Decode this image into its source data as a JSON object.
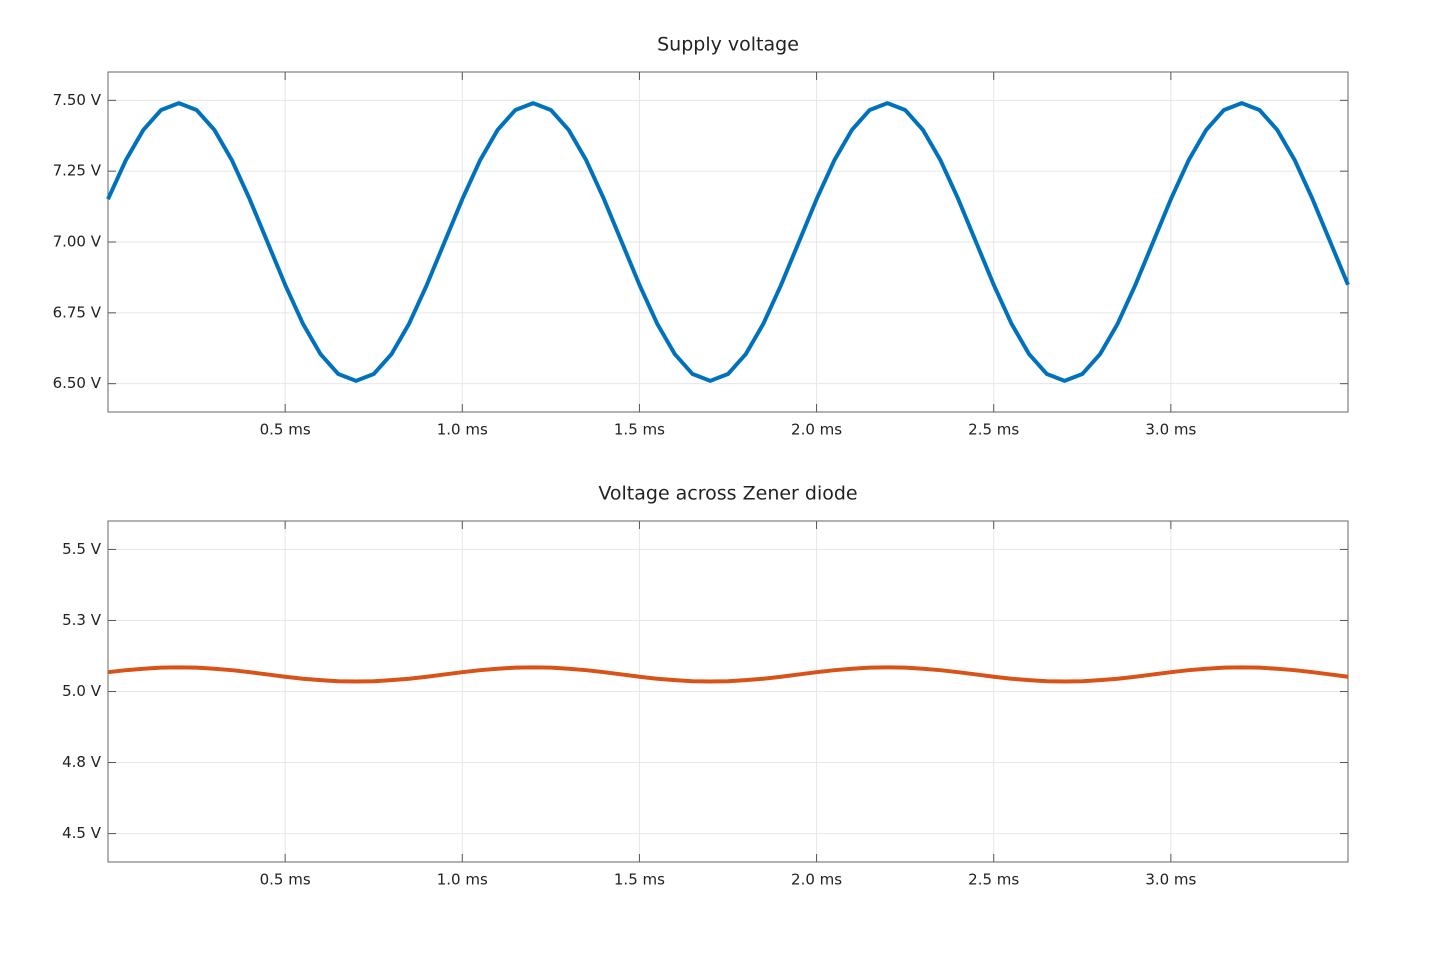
{
  "chart_data": [
    {
      "type": "line",
      "title": "Supply voltage",
      "x": [
        0,
        0.05,
        0.1,
        0.15,
        0.2,
        0.25,
        0.3,
        0.35,
        0.4,
        0.45,
        0.5,
        0.55,
        0.6,
        0.65,
        0.7,
        0.75,
        0.8,
        0.85,
        0.9,
        0.95,
        1.0,
        1.05,
        1.1,
        1.15,
        1.2,
        1.25,
        1.3,
        1.35,
        1.4,
        1.45,
        1.5,
        1.55,
        1.6,
        1.65,
        1.7,
        1.75,
        1.8,
        1.85,
        1.9,
        1.95,
        2.0,
        2.05,
        2.1,
        2.15,
        2.2,
        2.25,
        2.3,
        2.35,
        2.4,
        2.45,
        2.5,
        2.55,
        2.6,
        2.65,
        2.7,
        2.75,
        2.8,
        2.85,
        2.9,
        2.95,
        3.0,
        3.05,
        3.1,
        3.15,
        3.2,
        3.25,
        3.3,
        3.35,
        3.4,
        3.45,
        3.5
      ],
      "series": [
        {
          "color": "#0072bd",
          "values": [
            7.151,
            7.288,
            7.396,
            7.466,
            7.49,
            7.466,
            7.396,
            7.288,
            7.151,
            7.0,
            6.849,
            6.712,
            6.604,
            6.534,
            6.51,
            6.534,
            6.604,
            6.712,
            6.849,
            7.0,
            7.151,
            7.288,
            7.396,
            7.466,
            7.49,
            7.466,
            7.396,
            7.288,
            7.151,
            7.0,
            6.849,
            6.712,
            6.604,
            6.534,
            6.51,
            6.534,
            6.604,
            6.712,
            6.849,
            7.0,
            7.151,
            7.288,
            7.396,
            7.466,
            7.49,
            7.466,
            7.396,
            7.288,
            7.151,
            7.0,
            6.849,
            6.712,
            6.604,
            6.534,
            6.51,
            6.534,
            6.604,
            6.712,
            6.849,
            7.0,
            7.151,
            7.288,
            7.396,
            7.466,
            7.49,
            7.466,
            7.396,
            7.288,
            7.151,
            7.0,
            6.849
          ]
        }
      ],
      "xlim": [
        0,
        3.5
      ],
      "xticks": [
        {
          "value": 0.5,
          "label": "0.5 ms"
        },
        {
          "value": 1,
          "label": "1.0 ms"
        },
        {
          "value": 1.5,
          "label": "1.5 ms"
        },
        {
          "value": 2,
          "label": "2.0 ms"
        },
        {
          "value": 2.5,
          "label": "2.5 ms"
        },
        {
          "value": 3,
          "label": "3.0 ms"
        }
      ],
      "ylim": [
        6.4,
        7.6
      ],
      "yticks": [
        {
          "value": 6.5,
          "label": "6.50 V"
        },
        {
          "value": 6.75,
          "label": "6.75 V"
        },
        {
          "value": 7,
          "label": "7.00 V"
        },
        {
          "value": 7.25,
          "label": "7.25 V"
        },
        {
          "value": 7.5,
          "label": "7.50 V"
        }
      ],
      "grid": true
    },
    {
      "type": "line",
      "title": "Voltage across Zener diode",
      "x": [
        0,
        0.05,
        0.1,
        0.15,
        0.2,
        0.25,
        0.3,
        0.35,
        0.4,
        0.45,
        0.5,
        0.55,
        0.6,
        0.65,
        0.7,
        0.75,
        0.8,
        0.85,
        0.9,
        0.95,
        1.0,
        1.05,
        1.1,
        1.15,
        1.2,
        1.25,
        1.3,
        1.35,
        1.4,
        1.45,
        1.5,
        1.55,
        1.6,
        1.65,
        1.7,
        1.75,
        1.8,
        1.85,
        1.9,
        1.95,
        2.0,
        2.05,
        2.1,
        2.15,
        2.2,
        2.25,
        2.3,
        2.35,
        2.4,
        2.45,
        2.5,
        2.55,
        2.6,
        2.65,
        2.7,
        2.75,
        2.8,
        2.85,
        2.9,
        2.95,
        3.0,
        3.05,
        3.1,
        3.15,
        3.2,
        3.25,
        3.3,
        3.35,
        3.4,
        3.45,
        3.5
      ],
      "series": [
        {
          "color": "#d95319",
          "values": [
            5.068,
            5.075,
            5.08,
            5.084,
            5.085,
            5.084,
            5.08,
            5.075,
            5.068,
            5.06,
            5.052,
            5.045,
            5.04,
            5.036,
            5.035,
            5.036,
            5.04,
            5.045,
            5.052,
            5.06,
            5.068,
            5.075,
            5.08,
            5.084,
            5.085,
            5.084,
            5.08,
            5.075,
            5.068,
            5.06,
            5.052,
            5.045,
            5.04,
            5.036,
            5.035,
            5.036,
            5.04,
            5.045,
            5.052,
            5.06,
            5.068,
            5.075,
            5.08,
            5.084,
            5.085,
            5.084,
            5.08,
            5.075,
            5.068,
            5.06,
            5.052,
            5.045,
            5.04,
            5.036,
            5.035,
            5.036,
            5.04,
            5.045,
            5.052,
            5.06,
            5.068,
            5.075,
            5.08,
            5.084,
            5.085,
            5.084,
            5.08,
            5.075,
            5.068,
            5.06,
            5.052
          ]
        }
      ],
      "xlim": [
        0,
        3.5
      ],
      "xticks": [
        {
          "value": 0.5,
          "label": "0.5 ms"
        },
        {
          "value": 1,
          "label": "1.0 ms"
        },
        {
          "value": 1.5,
          "label": "1.5 ms"
        },
        {
          "value": 2,
          "label": "2.0 ms"
        },
        {
          "value": 2.5,
          "label": "2.5 ms"
        },
        {
          "value": 3,
          "label": "3.0 ms"
        }
      ],
      "ylim": [
        4.4,
        5.6
      ],
      "yticks": [
        {
          "value": 4.5,
          "label": "4.5 V"
        },
        {
          "value": 4.75,
          "label": "4.8 V"
        },
        {
          "value": 5,
          "label": "5.0 V"
        },
        {
          "value": 5.25,
          "label": "5.3 V"
        },
        {
          "value": 5.5,
          "label": "5.5 V"
        }
      ],
      "grid": true
    }
  ]
}
